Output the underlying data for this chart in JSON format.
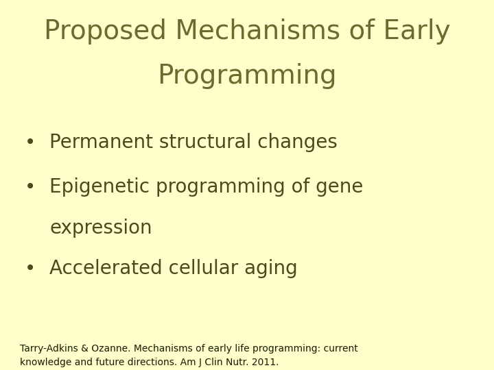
{
  "background_color": "#ffffcc",
  "title_line1": "Proposed Mechanisms of Early",
  "title_line2": "Programming",
  "title_color": "#6b6b2e",
  "title_fontsize": 28,
  "bullet_color": "#4a4a1a",
  "bullet_fontsize": 20,
  "bullet1": "Permanent structural changes",
  "bullet2a": "Epigenetic programming of gene",
  "bullet2b": "expression",
  "bullet3": "Accelerated cellular aging",
  "footnote": "Tarry-Adkins & Ozanne. Mechanisms of early life programming: current\nknowledge and future directions. Am J Clin Nutr. 2011.",
  "footnote_fontsize": 10,
  "footnote_color": "#1a1a00"
}
